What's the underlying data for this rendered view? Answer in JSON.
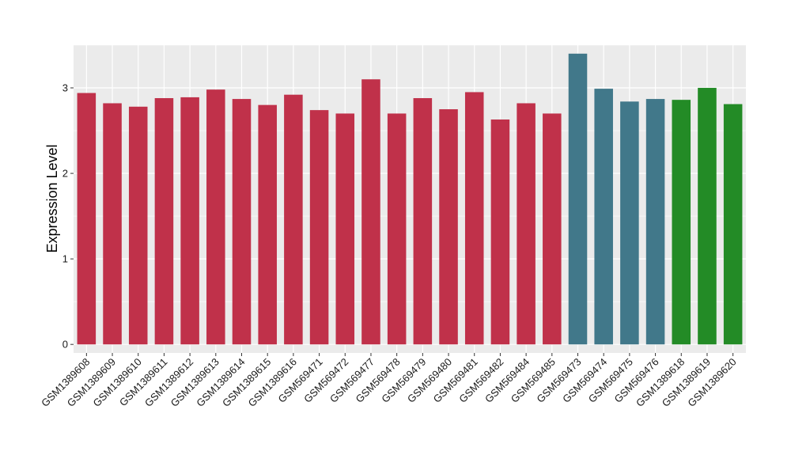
{
  "chart_data": {
    "type": "bar",
    "title": "",
    "xlabel": "",
    "ylabel": "Expression Level",
    "ylim": [
      -0.1,
      3.5
    ],
    "yticks": [
      0,
      1,
      2,
      3
    ],
    "grid": true,
    "legend": "none",
    "panel_background": "#ebebeb",
    "grid_color": "#ffffff",
    "categories": [
      "GSM1389608",
      "GSM1389609",
      "GSM1389610",
      "GSM1389611",
      "GSM1389612",
      "GSM1389613",
      "GSM1389614",
      "GSM1389615",
      "GSM1389616",
      "GSM569471",
      "GSM569472",
      "GSM569477",
      "GSM569478",
      "GSM569479",
      "GSM569480",
      "GSM569481",
      "GSM569482",
      "GSM569484",
      "GSM569485",
      "GSM569473",
      "GSM569474",
      "GSM569475",
      "GSM569476",
      "GSM1389618",
      "GSM1389619",
      "GSM1389620"
    ],
    "values": [
      2.94,
      2.82,
      2.78,
      2.88,
      2.89,
      2.98,
      2.87,
      2.8,
      2.92,
      2.74,
      2.7,
      3.1,
      2.7,
      2.88,
      2.75,
      2.95,
      2.63,
      2.82,
      2.7,
      3.4,
      2.99,
      2.84,
      2.87,
      2.86,
      3.0,
      2.81
    ],
    "colors": [
      "#c0314a",
      "#c0314a",
      "#c0314a",
      "#c0314a",
      "#c0314a",
      "#c0314a",
      "#c0314a",
      "#c0314a",
      "#c0314a",
      "#c0314a",
      "#c0314a",
      "#c0314a",
      "#c0314a",
      "#c0314a",
      "#c0314a",
      "#c0314a",
      "#c0314a",
      "#c0314a",
      "#c0314a",
      "#41788a",
      "#41788a",
      "#41788a",
      "#41788a",
      "#238b26",
      "#238b26",
      "#238b26"
    ]
  }
}
